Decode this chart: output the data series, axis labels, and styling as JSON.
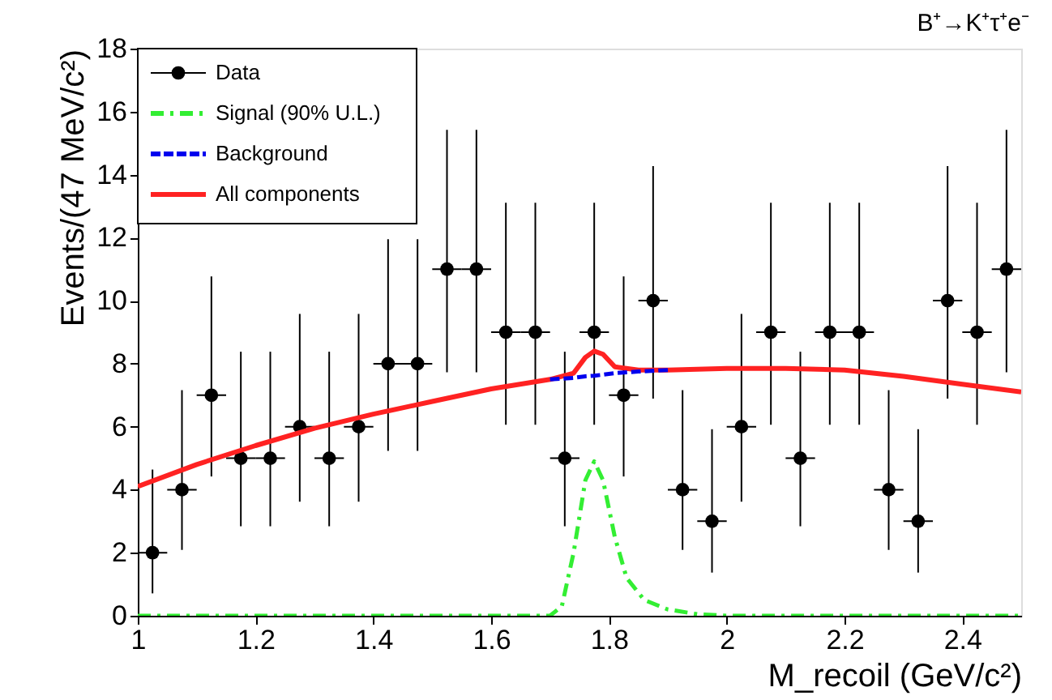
{
  "chart_data": {
    "type": "scatter",
    "title": "B⁺→K⁺τ⁺e⁻",
    "xlabel": "M_recoil (GeV/c²)",
    "ylabel": "Events/(47 MeV/c²)",
    "xlim": [
      1,
      2.5
    ],
    "xticks": [
      1,
      1.2,
      1.4,
      1.6,
      1.8,
      2,
      2.2,
      2.4
    ],
    "ylim": [
      0,
      18
    ],
    "yticks": [
      0,
      2,
      4,
      6,
      8,
      10,
      12,
      14,
      16,
      18
    ],
    "grid": false,
    "legend": "top left",
    "series": [
      {
        "name": "Data",
        "color": "#000000",
        "marker": "circle",
        "x": [
          1.025,
          1.075,
          1.125,
          1.175,
          1.225,
          1.275,
          1.325,
          1.375,
          1.425,
          1.475,
          1.525,
          1.575,
          1.625,
          1.675,
          1.725,
          1.775,
          1.825,
          1.875,
          1.925,
          1.975,
          2.025,
          2.075,
          2.125,
          2.175,
          2.225,
          2.275,
          2.325,
          2.375,
          2.425,
          2.475
        ],
        "values": [
          2,
          4,
          7,
          5,
          5,
          6,
          5,
          6,
          8,
          8,
          11,
          11,
          9,
          9,
          5,
          9,
          7,
          10,
          4,
          3,
          6,
          9,
          5,
          9,
          9,
          4,
          3,
          10,
          9,
          11
        ],
        "errors": [
          [
            0.71,
            4.64
          ],
          [
            2.09,
            7.16
          ],
          [
            4.42,
            10.77
          ],
          [
            2.84,
            8.38
          ],
          [
            2.84,
            8.38
          ],
          [
            3.62,
            9.58
          ],
          [
            2.84,
            8.38
          ],
          [
            3.62,
            9.58
          ],
          [
            5.23,
            11.95
          ],
          [
            5.23,
            11.95
          ],
          [
            7.73,
            15.42
          ],
          [
            7.73,
            15.42
          ],
          [
            6.06,
            13.11
          ],
          [
            6.06,
            13.11
          ],
          [
            2.84,
            8.38
          ],
          [
            6.06,
            13.11
          ],
          [
            4.42,
            10.77
          ],
          [
            6.89,
            14.27
          ],
          [
            2.09,
            7.16
          ],
          [
            1.37,
            5.92
          ],
          [
            3.62,
            9.58
          ],
          [
            6.06,
            13.11
          ],
          [
            2.84,
            8.38
          ],
          [
            6.06,
            13.11
          ],
          [
            6.06,
            13.11
          ],
          [
            2.09,
            7.16
          ],
          [
            1.37,
            5.92
          ],
          [
            6.89,
            14.27
          ],
          [
            6.06,
            13.11
          ],
          [
            7.73,
            15.42
          ]
        ],
        "xerrors": [
          0.025,
          0.025,
          0.025,
          0.025,
          0.025,
          0.025,
          0.025,
          0.025,
          0.025,
          0.025,
          0.025,
          0.025,
          0.025,
          0.025,
          0.025,
          0.025,
          0.025,
          0.025,
          0.025,
          0.025,
          0.025,
          0.025,
          0.025,
          0.025,
          0.025,
          0.025,
          0.025,
          0.025,
          0.025,
          0.025
        ]
      },
      {
        "name": "Signal (90% U.L.)",
        "type": "line",
        "color": "#33ee33",
        "line_style": "dashdot",
        "marker": "none",
        "x": [
          1.0,
          1.7,
          1.72,
          1.74,
          1.76,
          1.775,
          1.79,
          1.81,
          1.83,
          1.86,
          1.9,
          1.95,
          2.0,
          2.5
        ],
        "values": [
          0,
          0,
          0.3,
          2,
          4.3,
          4.9,
          4.3,
          2.5,
          1.2,
          0.5,
          0.2,
          0.05,
          0,
          0
        ]
      },
      {
        "name": "Background",
        "type": "line",
        "color": "#0000ee",
        "line_style": "dashed",
        "marker": "none",
        "x": [
          1.7,
          1.74,
          1.76,
          1.775,
          1.79,
          1.81,
          1.85,
          1.9
        ],
        "values": [
          7.5,
          7.55,
          7.6,
          7.62,
          7.65,
          7.7,
          7.75,
          7.8
        ]
      },
      {
        "name": "All components",
        "type": "line",
        "color": "#ff2222",
        "line_style": "solid",
        "marker": "none",
        "x": [
          1.0,
          1.1,
          1.2,
          1.3,
          1.4,
          1.5,
          1.6,
          1.7,
          1.74,
          1.76,
          1.775,
          1.79,
          1.81,
          1.85,
          1.9,
          2.0,
          2.1,
          2.2,
          2.3,
          2.4,
          2.5
        ],
        "values": [
          4.1,
          4.8,
          5.4,
          5.95,
          6.4,
          6.8,
          7.2,
          7.5,
          7.7,
          8.2,
          8.4,
          8.3,
          7.9,
          7.8,
          7.8,
          7.85,
          7.85,
          7.8,
          7.6,
          7.35,
          7.1
        ]
      }
    ]
  }
}
